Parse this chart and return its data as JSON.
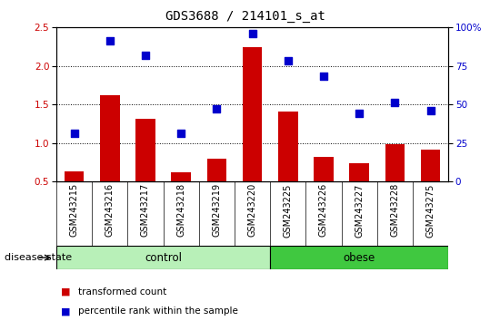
{
  "title": "GDS3688 / 214101_s_at",
  "samples": [
    "GSM243215",
    "GSM243216",
    "GSM243217",
    "GSM243218",
    "GSM243219",
    "GSM243220",
    "GSM243225",
    "GSM243226",
    "GSM243227",
    "GSM243228",
    "GSM243275"
  ],
  "bar_values": [
    0.63,
    1.62,
    1.31,
    0.62,
    0.79,
    2.24,
    1.41,
    0.82,
    0.74,
    0.98,
    0.91
  ],
  "dot_values": [
    31,
    91,
    82,
    31,
    47,
    96,
    78,
    68,
    44,
    51,
    46
  ],
  "ylim_left": [
    0.5,
    2.5
  ],
  "ylim_right": [
    0,
    100
  ],
  "yticks_left": [
    0.5,
    1.0,
    1.5,
    2.0,
    2.5
  ],
  "yticks_right": [
    0,
    25,
    50,
    75,
    100
  ],
  "bar_color": "#CC0000",
  "dot_color": "#0000CC",
  "dot_size": 40,
  "hline_values": [
    1.0,
    1.5,
    2.0
  ],
  "ylabel_left_color": "#CC0000",
  "ylabel_right_color": "#0000CC",
  "legend_bar_label": "transformed count",
  "legend_dot_label": "percentile rank within the sample",
  "disease_state_label": "disease state",
  "title_fontsize": 10,
  "tick_fontsize": 7.5,
  "label_fontsize": 8.5,
  "group_label_fontsize": 8.5,
  "right_tick_labels": [
    "0",
    "25",
    "50",
    "75",
    "100%"
  ],
  "control_color": "#b8f0b8",
  "obese_color": "#40c840",
  "grey_color": "#c8c8c8",
  "ctrl_count": 6,
  "obese_count": 5
}
